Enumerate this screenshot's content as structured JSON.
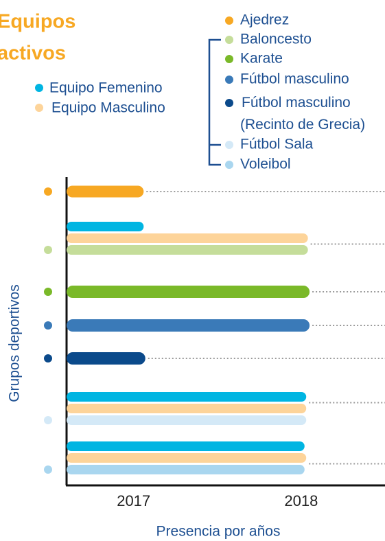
{
  "chart_data": {
    "type": "timeline-bar",
    "title": [
      "Equipos",
      "activos"
    ],
    "xlabel": "Presencia por años",
    "ylabel": "Grupos deportivos",
    "xlim": [
      2016.6,
      2018.5
    ],
    "xticks": [
      2017,
      2018
    ],
    "teams": [
      {
        "name": "Equipo Femenino",
        "color": "#00b5e2"
      },
      {
        "name": "Equipo Masculino",
        "color": "#fdd49a"
      }
    ],
    "groups": [
      {
        "name": "Ajedrez",
        "color": "#f7a823",
        "values": [
          2017.06
        ],
        "colors": [
          "#f7a823"
        ]
      },
      {
        "name": "Baloncesto",
        "color": "#c5dd9a",
        "values": [
          2017.06,
          2018.04,
          2018.04
        ],
        "colors": [
          "#00b5e2",
          "#fdd49a",
          "#c5dd9a"
        ]
      },
      {
        "name": "Karate",
        "color": "#7ab929",
        "values": [
          2018.05
        ],
        "colors": [
          "#7ab929"
        ]
      },
      {
        "name": "Fútbol masculino",
        "color": "#3a7ab8",
        "values": [
          2018.05
        ],
        "colors": [
          "#3a7ab8"
        ]
      },
      {
        "name": [
          "Fútbol masculino",
          "(Recinto de Grecia)"
        ],
        "color": "#0b4a8b",
        "values": [
          2017.07
        ],
        "colors": [
          "#0b4a8b"
        ]
      },
      {
        "name": "Fútbol Sala",
        "color": "#d4e9f7",
        "values": [
          2018.03,
          2018.03,
          2018.03
        ],
        "colors": [
          "#00b5e2",
          "#fdd49a",
          "#d4e9f7"
        ]
      },
      {
        "name": "Voleibol",
        "color": "#a9d6ef",
        "values": [
          2018.02,
          2018.03,
          2018.02
        ],
        "colors": [
          "#00b5e2",
          "#fdd49a",
          "#a9d6ef"
        ]
      }
    ]
  }
}
